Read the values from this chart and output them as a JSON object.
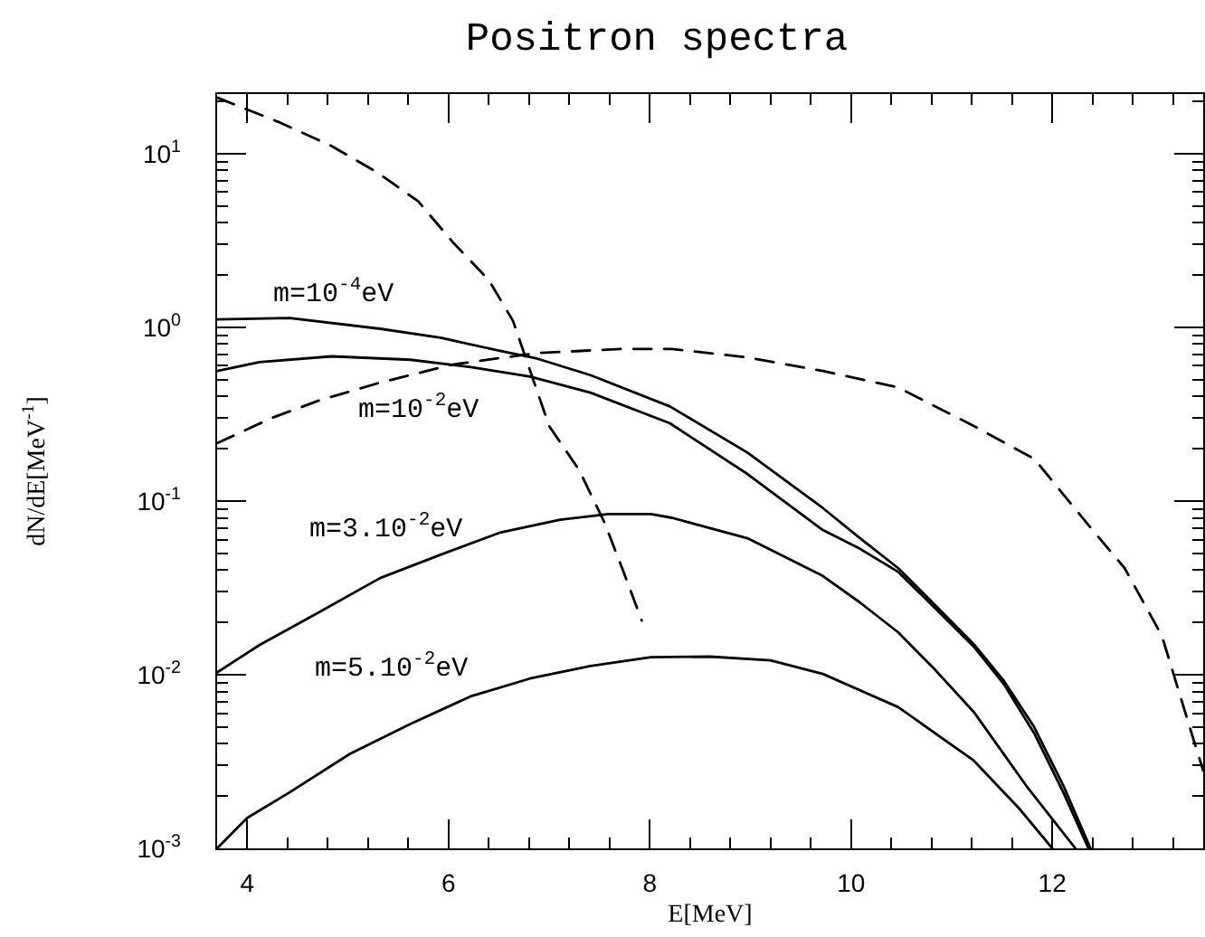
{
  "chart_data": {
    "type": "line",
    "title": "Positron spectra",
    "xlabel": "E[MeV]",
    "ylabel": "dN/dE[MeV$^{-1}$]",
    "log": "y",
    "xlim": [
      3.7,
      13.5
    ],
    "xticks": [
      4,
      {
        "value": 4.4,
        "label": null
      },
      {
        "value": 4.8,
        "label": null
      },
      {
        "value": 5.2,
        "label": null
      },
      {
        "value": 5.6,
        "label": null
      },
      6,
      {
        "value": 6.4,
        "label": null
      },
      {
        "value": 6.8,
        "label": null
      },
      {
        "value": 7.2,
        "label": null
      },
      {
        "value": 7.6,
        "label": null
      },
      8,
      {
        "value": 8.4,
        "label": null
      },
      {
        "value": 8.8,
        "label": null
      },
      {
        "value": 9.2,
        "label": null
      },
      {
        "value": 9.6,
        "label": null
      },
      10,
      {
        "value": 10.4,
        "label": null
      },
      {
        "value": 10.8,
        "label": null
      },
      {
        "value": 11.2,
        "label": null
      },
      {
        "value": 11.6,
        "label": null
      },
      12,
      {
        "value": 12.4,
        "label": null
      },
      {
        "value": 12.8,
        "label": null
      },
      {
        "value": 13.2,
        "label": null
      }
    ],
    "ylim": [
      0.001,
      22
    ],
    "yticks": [
      {
        "value": 0.001,
        "label": "10$^{-3}$"
      },
      {
        "value": 0.002,
        "label": null
      },
      {
        "value": 0.003,
        "label": null
      },
      {
        "value": 0.004,
        "label": null
      },
      {
        "value": 0.005,
        "label": null
      },
      {
        "value": 0.006,
        "label": null
      },
      {
        "value": 0.007,
        "label": null
      },
      {
        "value": 0.008,
        "label": null
      },
      {
        "value": 0.009,
        "label": null
      },
      {
        "value": 0.01,
        "label": "10$^{-2}$"
      },
      {
        "value": 0.02,
        "label": null
      },
      {
        "value": 0.03,
        "label": null
      },
      {
        "value": 0.04,
        "label": null
      },
      {
        "value": 0.05,
        "label": null
      },
      {
        "value": 0.06,
        "label": null
      },
      {
        "value": 0.07,
        "label": null
      },
      {
        "value": 0.08,
        "label": null
      },
      {
        "value": 0.09,
        "label": null
      },
      {
        "value": 0.1,
        "label": "10$^{-1}$"
      },
      {
        "value": 0.2,
        "label": null
      },
      {
        "value": 0.3,
        "label": null
      },
      {
        "value": 0.4,
        "label": null
      },
      {
        "value": 0.5,
        "label": null
      },
      {
        "value": 0.6,
        "label": null
      },
      {
        "value": 0.7,
        "label": null
      },
      {
        "value": 0.8,
        "label": null
      },
      {
        "value": 0.9,
        "label": null
      },
      {
        "value": 1,
        "label": "10$^{0}$"
      },
      {
        "value": 2,
        "label": null
      },
      {
        "value": 3,
        "label": null
      },
      {
        "value": 4,
        "label": null
      },
      {
        "value": 5,
        "label": null
      },
      {
        "value": 6,
        "label": null
      },
      {
        "value": 7,
        "label": null
      },
      {
        "value": 8,
        "label": null
      },
      {
        "value": 9,
        "label": null
      },
      {
        "value": 10,
        "label": "10$^{1}$"
      },
      {
        "value": 20,
        "label": null
      }
    ],
    "series": [
      {
        "name": "m=10$^{-4}$eV",
        "color": "#000000",
        "line_style": "solid",
        "x": [
          3.7,
          4.42,
          5.32,
          5.92,
          6.52,
          6.88,
          7.41,
          8.2,
          8.97,
          9.72,
          10.09,
          10.47,
          10.84,
          11.22,
          11.52,
          11.82,
          12.11,
          12.38
        ],
        "values": [
          1.11,
          1.13,
          0.98,
          0.87,
          0.73,
          0.66,
          0.53,
          0.35,
          0.19,
          0.091,
          0.061,
          0.041,
          0.025,
          0.015,
          0.0092,
          0.005,
          0.0023,
          0.001
        ]
      },
      {
        "name": "m=10$^{-2}$eV",
        "color": "#000000",
        "line_style": "solid",
        "x": [
          3.7,
          4.12,
          4.84,
          5.62,
          6.22,
          6.81,
          7.41,
          8.2,
          8.97,
          9.72,
          10.09,
          10.47,
          10.84,
          11.22,
          11.52,
          11.82,
          12.11,
          12.36
        ],
        "values": [
          0.56,
          0.63,
          0.68,
          0.65,
          0.59,
          0.52,
          0.42,
          0.28,
          0.143,
          0.068,
          0.053,
          0.039,
          0.024,
          0.0145,
          0.0088,
          0.0046,
          0.0021,
          0.001
        ]
      },
      {
        "name": "m=3.10$^{-2}$eV",
        "color": "#000000",
        "line_style": "solid",
        "x": [
          3.7,
          4.12,
          4.72,
          5.32,
          5.92,
          6.52,
          7.11,
          7.59,
          8.01,
          8.22,
          8.97,
          9.72,
          10.09,
          10.47,
          10.84,
          11.22,
          11.74,
          12.23
        ],
        "values": [
          0.0103,
          0.0148,
          0.023,
          0.036,
          0.049,
          0.066,
          0.078,
          0.084,
          0.084,
          0.08,
          0.061,
          0.037,
          0.026,
          0.0175,
          0.0106,
          0.0061,
          0.0023,
          0.001
        ]
      },
      {
        "name": "m=5.10$^{-2}$eV",
        "color": "#000000",
        "line_style": "solid",
        "x": [
          3.7,
          4.0,
          4.42,
          5.02,
          5.62,
          6.22,
          6.81,
          7.41,
          8.01,
          8.6,
          9.2,
          9.72,
          10.47,
          11.22,
          11.67,
          12.0
        ],
        "values": [
          0.001,
          0.0015,
          0.0021,
          0.0035,
          0.0052,
          0.0075,
          0.0095,
          0.0112,
          0.0126,
          0.0127,
          0.0121,
          0.0101,
          0.0065,
          0.0032,
          0.0017,
          0.001
        ]
      },
      {
        "color": "#000000",
        "line_style": "dashed",
        "x": [
          3.7,
          4.31,
          4.83,
          5.29,
          5.7,
          6.04,
          6.4,
          6.64,
          7.0,
          7.3,
          7.55,
          7.74,
          7.92
        ],
        "values": [
          21,
          15.2,
          11.1,
          7.8,
          5.3,
          3.1,
          1.87,
          1.09,
          0.27,
          0.15,
          0.075,
          0.039,
          0.0205
        ]
      },
      {
        "color": "#000000",
        "line_style": "dashed",
        "x": [
          3.7,
          4.24,
          4.72,
          5.32,
          6.04,
          6.88,
          7.71,
          8.22,
          8.97,
          9.72,
          10.47,
          11.22,
          11.82,
          12.34,
          12.72,
          13.09,
          13.39,
          13.5
        ],
        "values": [
          0.215,
          0.3,
          0.38,
          0.48,
          0.61,
          0.71,
          0.75,
          0.75,
          0.67,
          0.56,
          0.45,
          0.27,
          0.175,
          0.075,
          0.041,
          0.0167,
          0.0045,
          0.0028
        ]
      }
    ]
  }
}
